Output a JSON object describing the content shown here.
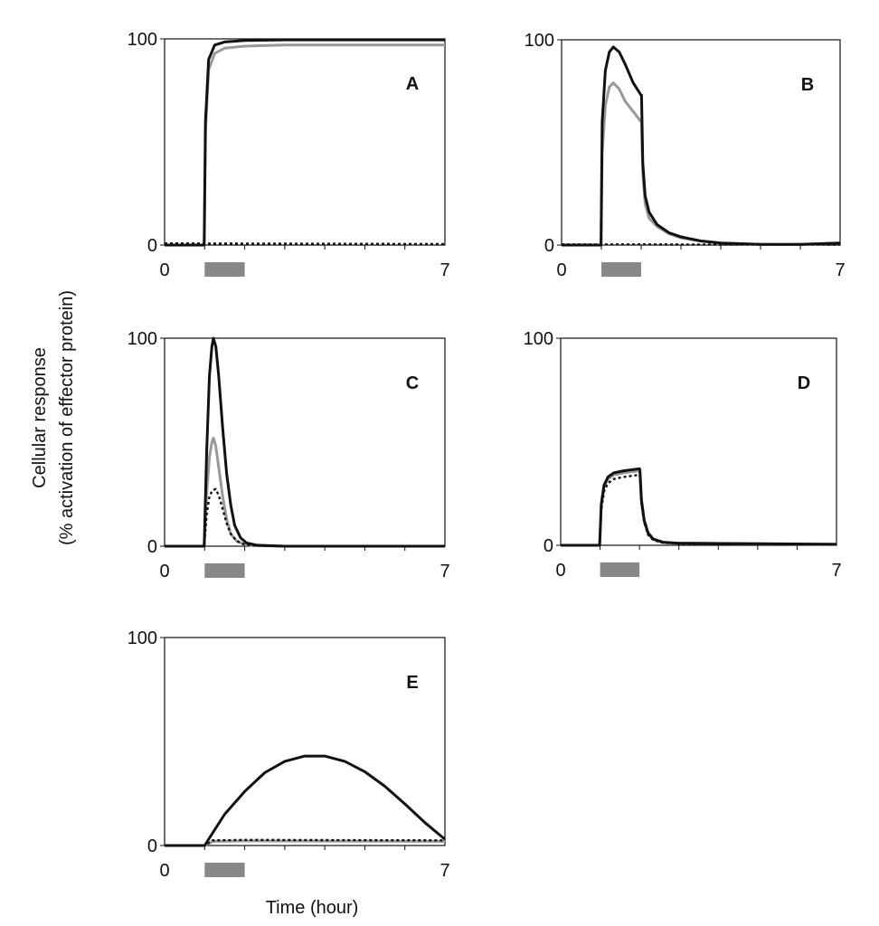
{
  "ylabel_line1": "Cellular  response",
  "ylabel_line2": "(% activation  of effector  protein)",
  "xlabel": "Time  (hour)",
  "colors": {
    "black": "#111111",
    "gray": "#999999",
    "stimulus_bar": "#888888"
  },
  "chart_data": [
    {
      "type": "line",
      "panel": "A",
      "xlim": [
        0,
        7
      ],
      "ylim": [
        0,
        100
      ],
      "x_ticks": [
        "0",
        "7"
      ],
      "y_ticks": [
        "0",
        "100"
      ],
      "stimulus": [
        1,
        2
      ],
      "series": [
        {
          "color": "black",
          "style": "solid",
          "points": [
            [
              0,
              0
            ],
            [
              0.99,
              0
            ],
            [
              1.02,
              60
            ],
            [
              1.1,
              90
            ],
            [
              1.25,
              97
            ],
            [
              1.5,
              98.5
            ],
            [
              2,
              99.2
            ],
            [
              3,
              99.5
            ],
            [
              7,
              99.5
            ]
          ]
        },
        {
          "color": "gray",
          "style": "solid",
          "points": [
            [
              0,
              0
            ],
            [
              0.99,
              0
            ],
            [
              1.02,
              55
            ],
            [
              1.1,
              85
            ],
            [
              1.25,
              93
            ],
            [
              1.5,
              95.5
            ],
            [
              2,
              96.5
            ],
            [
              3,
              97
            ],
            [
              7,
              97
            ]
          ]
        },
        {
          "color": "black",
          "style": "dotted",
          "points": [
            [
              0,
              0.8
            ],
            [
              7,
              0.5
            ]
          ]
        }
      ]
    },
    {
      "type": "line",
      "panel": "B",
      "xlim": [
        0,
        7
      ],
      "ylim": [
        0,
        100
      ],
      "x_ticks": [
        "0",
        "7"
      ],
      "y_ticks": [
        "0",
        "100"
      ],
      "stimulus": [
        1,
        2
      ],
      "series": [
        {
          "color": "black",
          "style": "solid",
          "points": [
            [
              0,
              0
            ],
            [
              0.99,
              0
            ],
            [
              1.02,
              60
            ],
            [
              1.1,
              85
            ],
            [
              1.2,
              94
            ],
            [
              1.3,
              96.5
            ],
            [
              1.45,
              94
            ],
            [
              1.6,
              88
            ],
            [
              1.8,
              79
            ],
            [
              2,
              73
            ],
            [
              2.01,
              73
            ],
            [
              2.04,
              40
            ],
            [
              2.1,
              24
            ],
            [
              2.2,
              16
            ],
            [
              2.4,
              10
            ],
            [
              2.7,
              6
            ],
            [
              3,
              4
            ],
            [
              3.5,
              2
            ],
            [
              4,
              1
            ],
            [
              5,
              0.3
            ],
            [
              6,
              0.3
            ],
            [
              7,
              1
            ]
          ]
        },
        {
          "color": "gray",
          "style": "solid",
          "points": [
            [
              0,
              0
            ],
            [
              0.99,
              0
            ],
            [
              1.02,
              45
            ],
            [
              1.1,
              68
            ],
            [
              1.2,
              77
            ],
            [
              1.3,
              79
            ],
            [
              1.45,
              76
            ],
            [
              1.6,
              70
            ],
            [
              1.8,
              65
            ],
            [
              2,
              60
            ],
            [
              2.01,
              59
            ],
            [
              2.04,
              35
            ],
            [
              2.1,
              20
            ],
            [
              2.2,
              13
            ],
            [
              2.4,
              9
            ],
            [
              2.7,
              5.5
            ],
            [
              3,
              3.5
            ],
            [
              3.5,
              2
            ],
            [
              4,
              1
            ],
            [
              5,
              0.3
            ],
            [
              6,
              0.3
            ],
            [
              7,
              1
            ]
          ]
        },
        {
          "color": "black",
          "style": "dotted",
          "points": [
            [
              0,
              0.3
            ],
            [
              7,
              0.2
            ]
          ]
        }
      ]
    },
    {
      "type": "line",
      "panel": "C",
      "xlim": [
        0,
        7
      ],
      "ylim": [
        0,
        100
      ],
      "x_ticks": [
        "0",
        "7"
      ],
      "y_ticks": [
        "0",
        "100"
      ],
      "stimulus": [
        1,
        2
      ],
      "series": [
        {
          "color": "black",
          "style": "solid",
          "points": [
            [
              0,
              0
            ],
            [
              0.99,
              0
            ],
            [
              1.05,
              45
            ],
            [
              1.12,
              82
            ],
            [
              1.18,
              96
            ],
            [
              1.22,
              100
            ],
            [
              1.28,
              96
            ],
            [
              1.35,
              82
            ],
            [
              1.45,
              57
            ],
            [
              1.55,
              35
            ],
            [
              1.65,
              20
            ],
            [
              1.75,
              10
            ],
            [
              1.9,
              4
            ],
            [
              2.05,
              1.5
            ],
            [
              2.3,
              0.5
            ],
            [
              3,
              0
            ],
            [
              7,
              0
            ]
          ]
        },
        {
          "color": "gray",
          "style": "solid",
          "points": [
            [
              0,
              0
            ],
            [
              0.99,
              0
            ],
            [
              1.05,
              25
            ],
            [
              1.12,
              43
            ],
            [
              1.18,
              50
            ],
            [
              1.22,
              52
            ],
            [
              1.28,
              48
            ],
            [
              1.35,
              38
            ],
            [
              1.45,
              24
            ],
            [
              1.55,
              13
            ],
            [
              1.65,
              6
            ],
            [
              1.8,
              2.5
            ],
            [
              2,
              0.8
            ],
            [
              2.3,
              0.2
            ],
            [
              3,
              0
            ],
            [
              7,
              0
            ]
          ]
        },
        {
          "color": "black",
          "style": "dotted",
          "points": [
            [
              0,
              0
            ],
            [
              0.99,
              0
            ],
            [
              1.05,
              15
            ],
            [
              1.12,
              24
            ],
            [
              1.2,
              27
            ],
            [
              1.28,
              27.5
            ],
            [
              1.36,
              24
            ],
            [
              1.45,
              18
            ],
            [
              1.55,
              11
            ],
            [
              1.65,
              6
            ],
            [
              1.8,
              2.5
            ],
            [
              2,
              0.8
            ],
            [
              2.3,
              0.2
            ],
            [
              3,
              0
            ],
            [
              7,
              0
            ]
          ]
        }
      ]
    },
    {
      "type": "line",
      "panel": "D",
      "xlim": [
        0,
        7
      ],
      "ylim": [
        0,
        100
      ],
      "x_ticks": [
        "0",
        "7"
      ],
      "y_ticks": [
        "0",
        "100"
      ],
      "stimulus": [
        1,
        2
      ],
      "series": [
        {
          "color": "black",
          "style": "solid",
          "points": [
            [
              0,
              0
            ],
            [
              0.99,
              0
            ],
            [
              1.03,
              20
            ],
            [
              1.1,
              29
            ],
            [
              1.2,
              33
            ],
            [
              1.35,
              35
            ],
            [
              1.6,
              36
            ],
            [
              2,
              37
            ],
            [
              2.01,
              36.5
            ],
            [
              2.05,
              22
            ],
            [
              2.12,
              12
            ],
            [
              2.22,
              6
            ],
            [
              2.35,
              3
            ],
            [
              2.6,
              1.5
            ],
            [
              3,
              1
            ],
            [
              7,
              0.5
            ]
          ]
        },
        {
          "color": "gray",
          "style": "solid",
          "points": [
            [
              0,
              0
            ],
            [
              0.99,
              0
            ],
            [
              1.03,
              19
            ],
            [
              1.1,
              28
            ],
            [
              1.2,
              32
            ],
            [
              1.35,
              34
            ],
            [
              1.6,
              35
            ],
            [
              2,
              36
            ],
            [
              2.01,
              35.5
            ],
            [
              2.05,
              21
            ],
            [
              2.12,
              11.5
            ],
            [
              2.22,
              5.5
            ],
            [
              2.35,
              2.8
            ],
            [
              2.6,
              1.4
            ],
            [
              3,
              1
            ],
            [
              7,
              0.5
            ]
          ]
        },
        {
          "color": "black",
          "style": "dotted",
          "points": [
            [
              0,
              0
            ],
            [
              0.99,
              0
            ],
            [
              1.03,
              17
            ],
            [
              1.1,
              26
            ],
            [
              1.2,
              30
            ],
            [
              1.35,
              32
            ],
            [
              1.6,
              33
            ],
            [
              2,
              34
            ],
            [
              2.01,
              33.5
            ],
            [
              2.05,
              20
            ],
            [
              2.12,
              11
            ],
            [
              2.22,
              5
            ],
            [
              2.35,
              2.5
            ],
            [
              2.6,
              1.2
            ],
            [
              3,
              0.8
            ],
            [
              7,
              0.5
            ]
          ]
        }
      ]
    },
    {
      "type": "line",
      "panel": "E",
      "xlim": [
        0,
        7
      ],
      "ylim": [
        0,
        100
      ],
      "x_ticks": [
        "0",
        "7"
      ],
      "y_ticks": [
        "0",
        "100"
      ],
      "stimulus": [
        1,
        2
      ],
      "series": [
        {
          "color": "black",
          "style": "solid",
          "points": [
            [
              0,
              0
            ],
            [
              1,
              0
            ],
            [
              1.2,
              6
            ],
            [
              1.5,
              15
            ],
            [
              2,
              26
            ],
            [
              2.5,
              35
            ],
            [
              3,
              40.5
            ],
            [
              3.5,
              43
            ],
            [
              4,
              43
            ],
            [
              4.5,
              40.5
            ],
            [
              5,
              35.5
            ],
            [
              5.5,
              28.5
            ],
            [
              6,
              20
            ],
            [
              6.5,
              11
            ],
            [
              7,
              3
            ]
          ]
        },
        {
          "color": "gray",
          "style": "solid",
          "points": [
            [
              0,
              0
            ],
            [
              1,
              0
            ],
            [
              1.2,
              2
            ],
            [
              2,
              2.2
            ],
            [
              7,
              2
            ]
          ]
        },
        {
          "color": "black",
          "style": "dotted",
          "points": [
            [
              0,
              0
            ],
            [
              1,
              0
            ],
            [
              1.2,
              2.5
            ],
            [
              2,
              2.7
            ],
            [
              7,
              2.5
            ]
          ]
        }
      ]
    }
  ]
}
